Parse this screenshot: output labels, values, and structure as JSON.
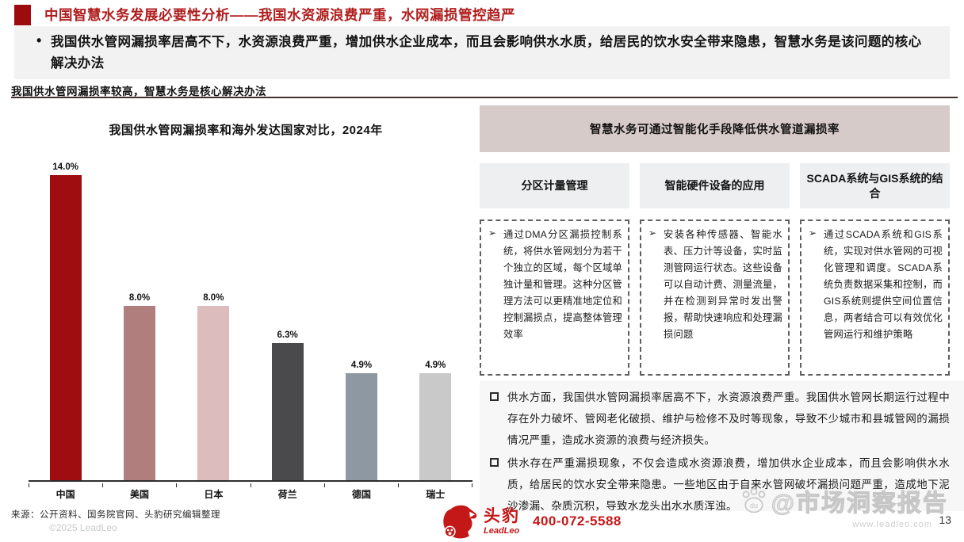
{
  "page": {
    "title": "中国智慧水务发展必要性分析——我国水资源浪费严重，水网漏损管控趋严",
    "summary_bullet": "我国供水管网漏损率居高不下，水资源浪费严重，增加供水企业成本，而且会影响供水水质，给居民的饮水安全带来隐患，智慧水务是该问题的核心解决办法",
    "section_subtitle": "我国供水管网漏损率较高，智慧水务是核心解决办法",
    "page_number": "13"
  },
  "chart_data": {
    "type": "bar",
    "title": "我国供水管网漏损率和海外发达国家对比，2024年",
    "categories": [
      "中国",
      "美国",
      "日本",
      "荷兰",
      "德国",
      "瑞士"
    ],
    "values": [
      14.0,
      8.0,
      8.0,
      6.3,
      4.9,
      4.9
    ],
    "labels": [
      "14.0%",
      "8.0%",
      "8.0%",
      "6.3%",
      "4.9%",
      "4.9%"
    ],
    "bar_colors": [
      "#A00D10",
      "#B17E7E",
      "#DCBCBC",
      "#4A4A4C",
      "#8E98A2",
      "#C9C9C9"
    ],
    "ylim": [
      0,
      14
    ],
    "unit": "%",
    "grid": "off",
    "legend": "none",
    "source": "来源：公开资料、国务院官网、头豹研究编辑整理",
    "copyright": "©2025 LeadLeo"
  },
  "right_panel": {
    "header": "智慧水务可通过智能化手段降低供水管道漏损率",
    "columns": [
      {
        "title": "分区计量管理",
        "body": "通过DMA分区漏损控制系统，将供水管网划分为若干个独立的区域，每个区域单独计量和管理。这种分区管理方法可以更精准地定位和控制漏损点，提高整体管理效率"
      },
      {
        "title": "智能硬件设备的应用",
        "body": "安装各种传感器、智能水表、压力计等设备，实时监测管网运行状态。这些设备可以自动计费、测量流量，并在检测到异常时发出警报，帮助快速响应和处理漏损问题"
      },
      {
        "title": "SCADA系统与GIS系统的结合",
        "body": "通过SCADA系统和GIS系统，实现对供水管网的可视化管理和调度。SCADA系统负责数据采集和控制，而GIS系统则提供空间位置信息，两者结合可以有效优化管网运行和维护策略"
      }
    ],
    "notes": [
      "供水方面，我国供水管网漏损率居高不下，水资源浪费严重。我国供水管网长期运行过程中存在外力破坏、管网老化破损、维护与检修不及时等现象，导致不少城市和县城管网的漏损情况严重，造成水资源的浪费与经济损失。",
      "供水存在严重漏损现象，不仅会造成水资源浪费，增加供水企业成本，而且会影响供水水质，给居民的饮水安全带来隐患。一些地区由于自来水管网破坏漏损问题严重，造成地下泥沙渗漏、杂质沉积，导致水龙头出水水质浑浊。"
    ],
    "bullet_glyph": "➢"
  },
  "footer": {
    "brand_cn": "头豹",
    "brand_en": "LeadLeo",
    "phone": "400-072-5588",
    "watermark": "@市场洞察报告",
    "watermark_url": "www.leadleo.com"
  },
  "colors": {
    "title_red": "#B01E1E",
    "square_red": "#9E0B0F",
    "brand_red": "#C41818",
    "summary_bg": "#F2F2F2",
    "rp_header_bg": "#D7CBC9",
    "rp_col_bg": "#EDEFF0",
    "notes_bg": "#F7F7F7",
    "divider": "#44302e"
  }
}
